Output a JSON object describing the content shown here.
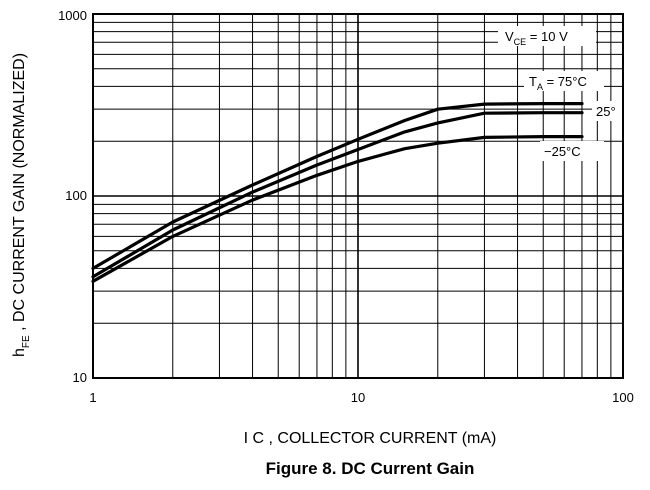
{
  "chart_data": {
    "type": "line",
    "x_scale": "log",
    "y_scale": "log",
    "xlim": [
      1,
      100
    ],
    "ylim": [
      10,
      1000
    ],
    "x_ticks": [
      "1",
      "10",
      "100"
    ],
    "y_ticks": [
      "10",
      "100",
      "1000"
    ],
    "xlabel": "I C , COLLECTOR CURRENT (mA)",
    "ylabel": {
      "main": "h",
      "sub": "FE",
      "rest": " , DC CURRENT GAIN (NORMALIZED)"
    },
    "title": "Figure 8. DC Current Gain",
    "grid": true,
    "condition": {
      "main": "V",
      "sub": "CE",
      "rest": " = 10 V"
    },
    "series": [
      {
        "name": "75°C",
        "label_main": "T",
        "label_sub": "A",
        "label_rest": " = 75°C",
        "x": [
          1,
          2,
          4,
          7,
          10,
          15,
          20,
          30,
          50,
          70
        ],
        "y": [
          40,
          72,
          115,
          165,
          205,
          260,
          300,
          320,
          322,
          322
        ]
      },
      {
        "name": "25°",
        "label_main": "25°",
        "x": [
          1,
          2,
          4,
          7,
          10,
          15,
          20,
          30,
          50,
          70
        ],
        "y": [
          36,
          65,
          105,
          148,
          180,
          225,
          252,
          285,
          287,
          287
        ]
      },
      {
        "name": "−25°C",
        "label_main": "−25°C",
        "x": [
          1,
          2,
          4,
          7,
          10,
          15,
          20,
          30,
          50,
          70
        ],
        "y": [
          34,
          60,
          95,
          130,
          155,
          182,
          195,
          210,
          212,
          212
        ]
      }
    ]
  }
}
